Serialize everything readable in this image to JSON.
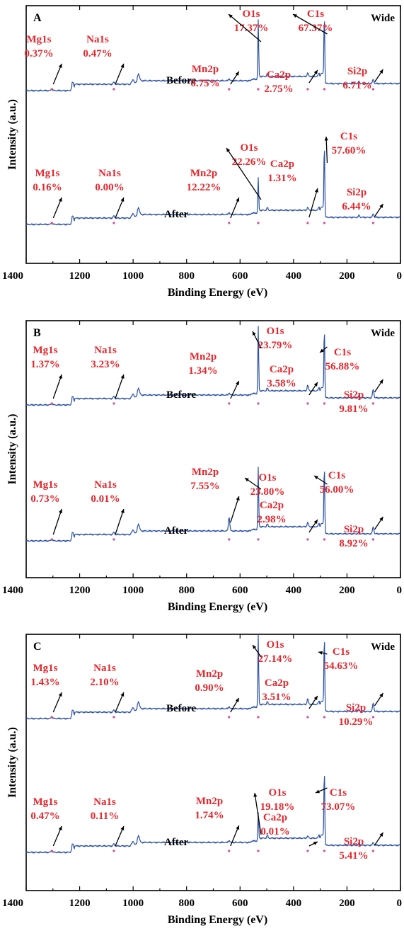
{
  "chart_data": [
    {
      "type": "line",
      "panel": "A",
      "tag": "Wide",
      "xlabel": "Binding Energy (eV)",
      "ylabel": "Intensity (a.u.)",
      "xlim": [
        1400,
        0
      ],
      "x_reversed": true,
      "xticks": [
        "1400",
        "1200",
        "1000",
        "800",
        "600",
        "400",
        "200",
        "0"
      ],
      "series": [
        {
          "name": "Before",
          "annotations": [
            {
              "element": "Mg1s",
              "value": "0.37%",
              "energy": 1304
            },
            {
              "element": "Na1s",
              "value": "0.47%",
              "energy": 1072
            },
            {
              "element": "Mn2p",
              "value": "0.75%",
              "energy": 641
            },
            {
              "element": "O1s",
              "value": "17.37%",
              "energy": 532
            },
            {
              "element": "Ca2p",
              "value": "2.75%",
              "energy": 347
            },
            {
              "element": "C1s",
              "value": "67.37%",
              "energy": 284.6
            },
            {
              "element": "Si2p",
              "value": "6.71%",
              "energy": 102
            }
          ]
        },
        {
          "name": "After",
          "annotations": [
            {
              "element": "Mg1s",
              "value": "0.16%",
              "energy": 1304
            },
            {
              "element": "Na1s",
              "value": "0.00%",
              "energy": 1072
            },
            {
              "element": "Mn2p",
              "value": "12.22%",
              "energy": 641
            },
            {
              "element": "O1s",
              "value": "22.26%",
              "energy": 532
            },
            {
              "element": "Ca2p",
              "value": "1.31%",
              "energy": 347
            },
            {
              "element": "C1s",
              "value": "57.60%",
              "energy": 284.6
            },
            {
              "element": "Si2p",
              "value": "6.44%",
              "energy": 102
            }
          ]
        }
      ]
    },
    {
      "type": "line",
      "panel": "B",
      "tag": "Wide",
      "xlabel": "Binding Energy (eV)",
      "ylabel": "Intensity (a.u.)",
      "xlim": [
        1400,
        0
      ],
      "x_reversed": true,
      "xticks": [
        "1400",
        "1200",
        "1000",
        "800",
        "600",
        "400",
        "200",
        "0"
      ],
      "series": [
        {
          "name": "Before",
          "annotations": [
            {
              "element": "Mg1s",
              "value": "1.37%",
              "energy": 1304
            },
            {
              "element": "Na1s",
              "value": "3.23%",
              "energy": 1072
            },
            {
              "element": "Mn2p",
              "value": "1.34%",
              "energy": 641
            },
            {
              "element": "O1s",
              "value": "23.79%",
              "energy": 532
            },
            {
              "element": "Ca2p",
              "value": "3.58%",
              "energy": 347
            },
            {
              "element": "C1s",
              "value": "56.88%",
              "energy": 284.6
            },
            {
              "element": "Si2p",
              "value": "9.81%",
              "energy": 102
            }
          ]
        },
        {
          "name": "After",
          "annotations": [
            {
              "element": "Mg1s",
              "value": "0.73%",
              "energy": 1304
            },
            {
              "element": "Na1s",
              "value": "0.01%",
              "energy": 1072
            },
            {
              "element": "Mn2p",
              "value": "7.55%",
              "energy": 641
            },
            {
              "element": "O1s",
              "value": "23.80%",
              "energy": 532
            },
            {
              "element": "Ca2p",
              "value": "2.98%",
              "energy": 347
            },
            {
              "element": "C1s",
              "value": "56.00%",
              "energy": 284.6
            },
            {
              "element": "Si2p",
              "value": "8.92%",
              "energy": 102
            }
          ]
        }
      ]
    },
    {
      "type": "line",
      "panel": "C",
      "tag": "Wide",
      "xlabel": "Binding Energy (eV)",
      "ylabel": "Intensity (a.u.)",
      "xlim": [
        1400,
        0
      ],
      "x_reversed": true,
      "xticks": [
        "1400",
        "1200",
        "1000",
        "800",
        "600",
        "400",
        "200",
        "0"
      ],
      "series": [
        {
          "name": "Before",
          "annotations": [
            {
              "element": "Mg1s",
              "value": "1.43%",
              "energy": 1304
            },
            {
              "element": "Na1s",
              "value": "2.10%",
              "energy": 1072
            },
            {
              "element": "Mn2p",
              "value": "0.90%",
              "energy": 641
            },
            {
              "element": "O1s",
              "value": "27.14%",
              "energy": 532
            },
            {
              "element": "Ca2p",
              "value": "3.51%",
              "energy": 347
            },
            {
              "element": "C1s",
              "value": "54.63%",
              "energy": 284.6
            },
            {
              "element": "Si2p",
              "value": "10.29%",
              "energy": 102
            }
          ]
        },
        {
          "name": "After",
          "annotations": [
            {
              "element": "Mg1s",
              "value": "0.47%",
              "energy": 1304
            },
            {
              "element": "Na1s",
              "value": "0.11%",
              "energy": 1072
            },
            {
              "element": "Mn2p",
              "value": "1.74%",
              "energy": 641
            },
            {
              "element": "O1s",
              "value": "19.18%",
              "energy": 532
            },
            {
              "element": "Ca2p",
              "value": "0.01%",
              "energy": 347
            },
            {
              "element": "C1s",
              "value": "73.07%",
              "energy": 284.6
            },
            {
              "element": "Si2p",
              "value": "5.41%",
              "energy": 102
            }
          ]
        }
      ]
    }
  ],
  "colors": {
    "spectrum": "#2a50a8",
    "annotation_text": "#e8252b",
    "peak_marker": "#d84a9a",
    "axis": "#000000"
  }
}
